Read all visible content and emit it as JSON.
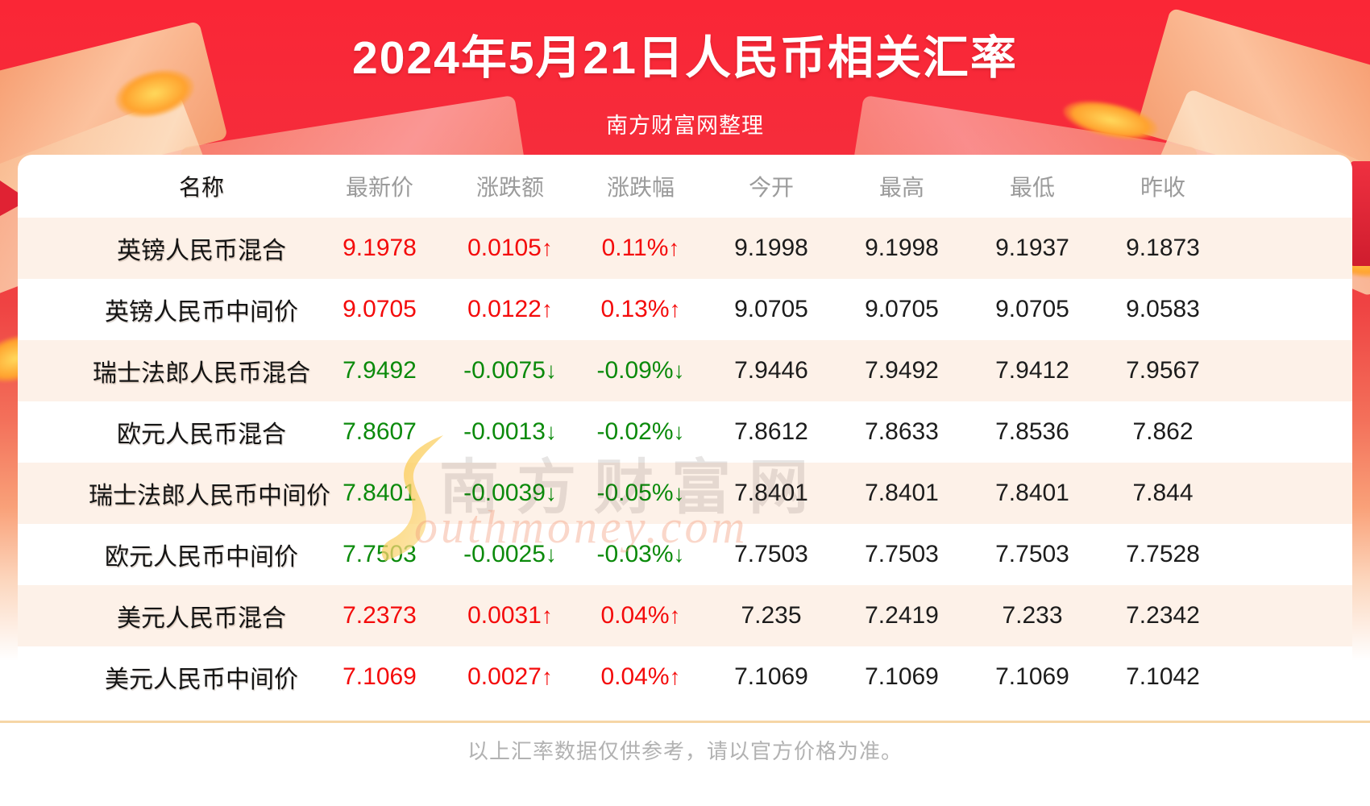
{
  "page": {
    "title": "2024年5月21日人民币相关汇率",
    "subtitle": "南方财富网整理",
    "footer_note": "以上汇率数据仅供参考，请以官方价格为准。"
  },
  "colors": {
    "banner_red": "#f92a3a",
    "up": "#f40b0b",
    "down": "#0b8a0b",
    "neutral": "#1c1c1c",
    "header_text": "#9b9b9b",
    "row_alt_bg": "#fdf1e8",
    "divider": "#f6d6a6"
  },
  "icons": {
    "up_arrow": "↑",
    "down_arrow": "↓"
  },
  "watermark": {
    "cn": "南方财富网",
    "en_initial": "S",
    "en_rest": "outhmoney.com"
  },
  "table": {
    "columns": [
      "名称",
      "最新价",
      "涨跌额",
      "涨跌幅",
      "今开",
      "最高",
      "最低",
      "昨收"
    ],
    "rows": [
      {
        "name": "英镑人民币混合",
        "trend": "up",
        "latest": "9.1978",
        "change": "0.0105",
        "change_pct": "0.11%",
        "open": "9.1998",
        "high": "9.1998",
        "low": "9.1937",
        "prev_close": "9.1873"
      },
      {
        "name": "英镑人民币中间价",
        "trend": "up",
        "latest": "9.0705",
        "change": "0.0122",
        "change_pct": "0.13%",
        "open": "9.0705",
        "high": "9.0705",
        "low": "9.0705",
        "prev_close": "9.0583"
      },
      {
        "name": "瑞士法郎人民币混合",
        "trend": "down",
        "latest": "7.9492",
        "change": "-0.0075",
        "change_pct": "-0.09%",
        "open": "7.9446",
        "high": "7.9492",
        "low": "7.9412",
        "prev_close": "7.9567"
      },
      {
        "name": "欧元人民币混合",
        "trend": "down",
        "latest": "7.8607",
        "change": "-0.0013",
        "change_pct": "-0.02%",
        "open": "7.8612",
        "high": "7.8633",
        "low": "7.8536",
        "prev_close": "7.862"
      },
      {
        "name": "瑞士法郎人民币中间价",
        "trend": "down",
        "latest": "7.8401",
        "change": "-0.0039",
        "change_pct": "-0.05%",
        "open": "7.8401",
        "high": "7.8401",
        "low": "7.8401",
        "prev_close": "7.844"
      },
      {
        "name": "欧元人民币中间价",
        "trend": "down",
        "latest": "7.7503",
        "change": "-0.0025",
        "change_pct": "-0.03%",
        "open": "7.7503",
        "high": "7.7503",
        "low": "7.7503",
        "prev_close": "7.7528"
      },
      {
        "name": "美元人民币混合",
        "trend": "up",
        "latest": "7.2373",
        "change": "0.0031",
        "change_pct": "0.04%",
        "open": "7.235",
        "high": "7.2419",
        "low": "7.233",
        "prev_close": "7.2342"
      },
      {
        "name": "美元人民币中间价",
        "trend": "up",
        "latest": "7.1069",
        "change": "0.0027",
        "change_pct": "0.04%",
        "open": "7.1069",
        "high": "7.1069",
        "low": "7.1069",
        "prev_close": "7.1042"
      }
    ]
  },
  "chart_data": {
    "type": "table",
    "title": "2024年5月21日人民币相关汇率",
    "subtitle": "南方财富网整理",
    "columns": [
      "名称",
      "最新价",
      "涨跌额",
      "涨跌幅",
      "今开",
      "最高",
      "最低",
      "昨收"
    ],
    "rows": [
      [
        "英镑人民币混合",
        9.1978,
        0.0105,
        "0.11%↑",
        9.1998,
        9.1998,
        9.1937,
        9.1873
      ],
      [
        "英镑人民币中间价",
        9.0705,
        0.0122,
        "0.13%↑",
        9.0705,
        9.0705,
        9.0705,
        9.0583
      ],
      [
        "瑞士法郎人民币混合",
        7.9492,
        -0.0075,
        "-0.09%↓",
        7.9446,
        7.9492,
        7.9412,
        7.9567
      ],
      [
        "欧元人民币混合",
        7.8607,
        -0.0013,
        "-0.02%↓",
        7.8612,
        7.8633,
        7.8536,
        7.862
      ],
      [
        "瑞士法郎人民币中间价",
        7.8401,
        -0.0039,
        "-0.05%↓",
        7.8401,
        7.8401,
        7.8401,
        7.844
      ],
      [
        "欧元人民币中间价",
        7.7503,
        -0.0025,
        "-0.03%↓",
        7.7503,
        7.7503,
        7.7503,
        7.7528
      ],
      [
        "美元人民币混合",
        7.2373,
        0.0031,
        "0.04%↑",
        7.235,
        7.2419,
        7.233,
        7.2342
      ],
      [
        "美元人民币中间价",
        7.1069,
        0.0027,
        "0.04%↑",
        7.1069,
        7.1069,
        7.1069,
        7.1042
      ]
    ],
    "footnote": "以上汇率数据仅供参考，请以官方价格为准。"
  }
}
